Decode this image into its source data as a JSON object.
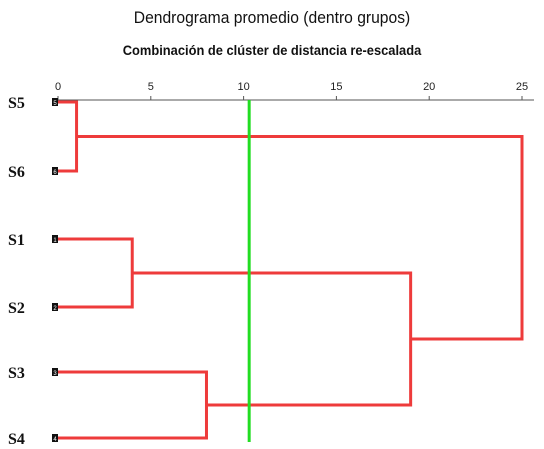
{
  "chart_data": {
    "type": "dendrogram",
    "title": "Dendrograma   promedio (dentro grupos)",
    "subtitle": "Combinación de clúster de distancia re-escalada",
    "x_ticks": [
      0,
      5,
      10,
      15,
      20,
      25
    ],
    "xlim": [
      0,
      25
    ],
    "leaves": [
      {
        "label": "S5",
        "id": "5"
      },
      {
        "label": "S6",
        "id": "6"
      },
      {
        "label": "S1",
        "id": "1"
      },
      {
        "label": "S2",
        "id": "2"
      },
      {
        "label": "S3",
        "id": "3"
      },
      {
        "label": "S4",
        "id": "4"
      }
    ],
    "merges": [
      {
        "a": "S5",
        "b": "S6",
        "distance": 1
      },
      {
        "a": "S1",
        "b": "S2",
        "distance": 4
      },
      {
        "a": "S3",
        "b": "S4",
        "distance": 8
      },
      {
        "a": "S1+S2",
        "b": "S3+S4",
        "distance": 19
      },
      {
        "a": "S5+S6",
        "b": "S1+S2+S3+S4",
        "distance": 25
      }
    ],
    "cut_line": 10.3,
    "colors": {
      "link": "#ee3b3b",
      "cut": "#22dd22",
      "axis": "#555555"
    }
  }
}
